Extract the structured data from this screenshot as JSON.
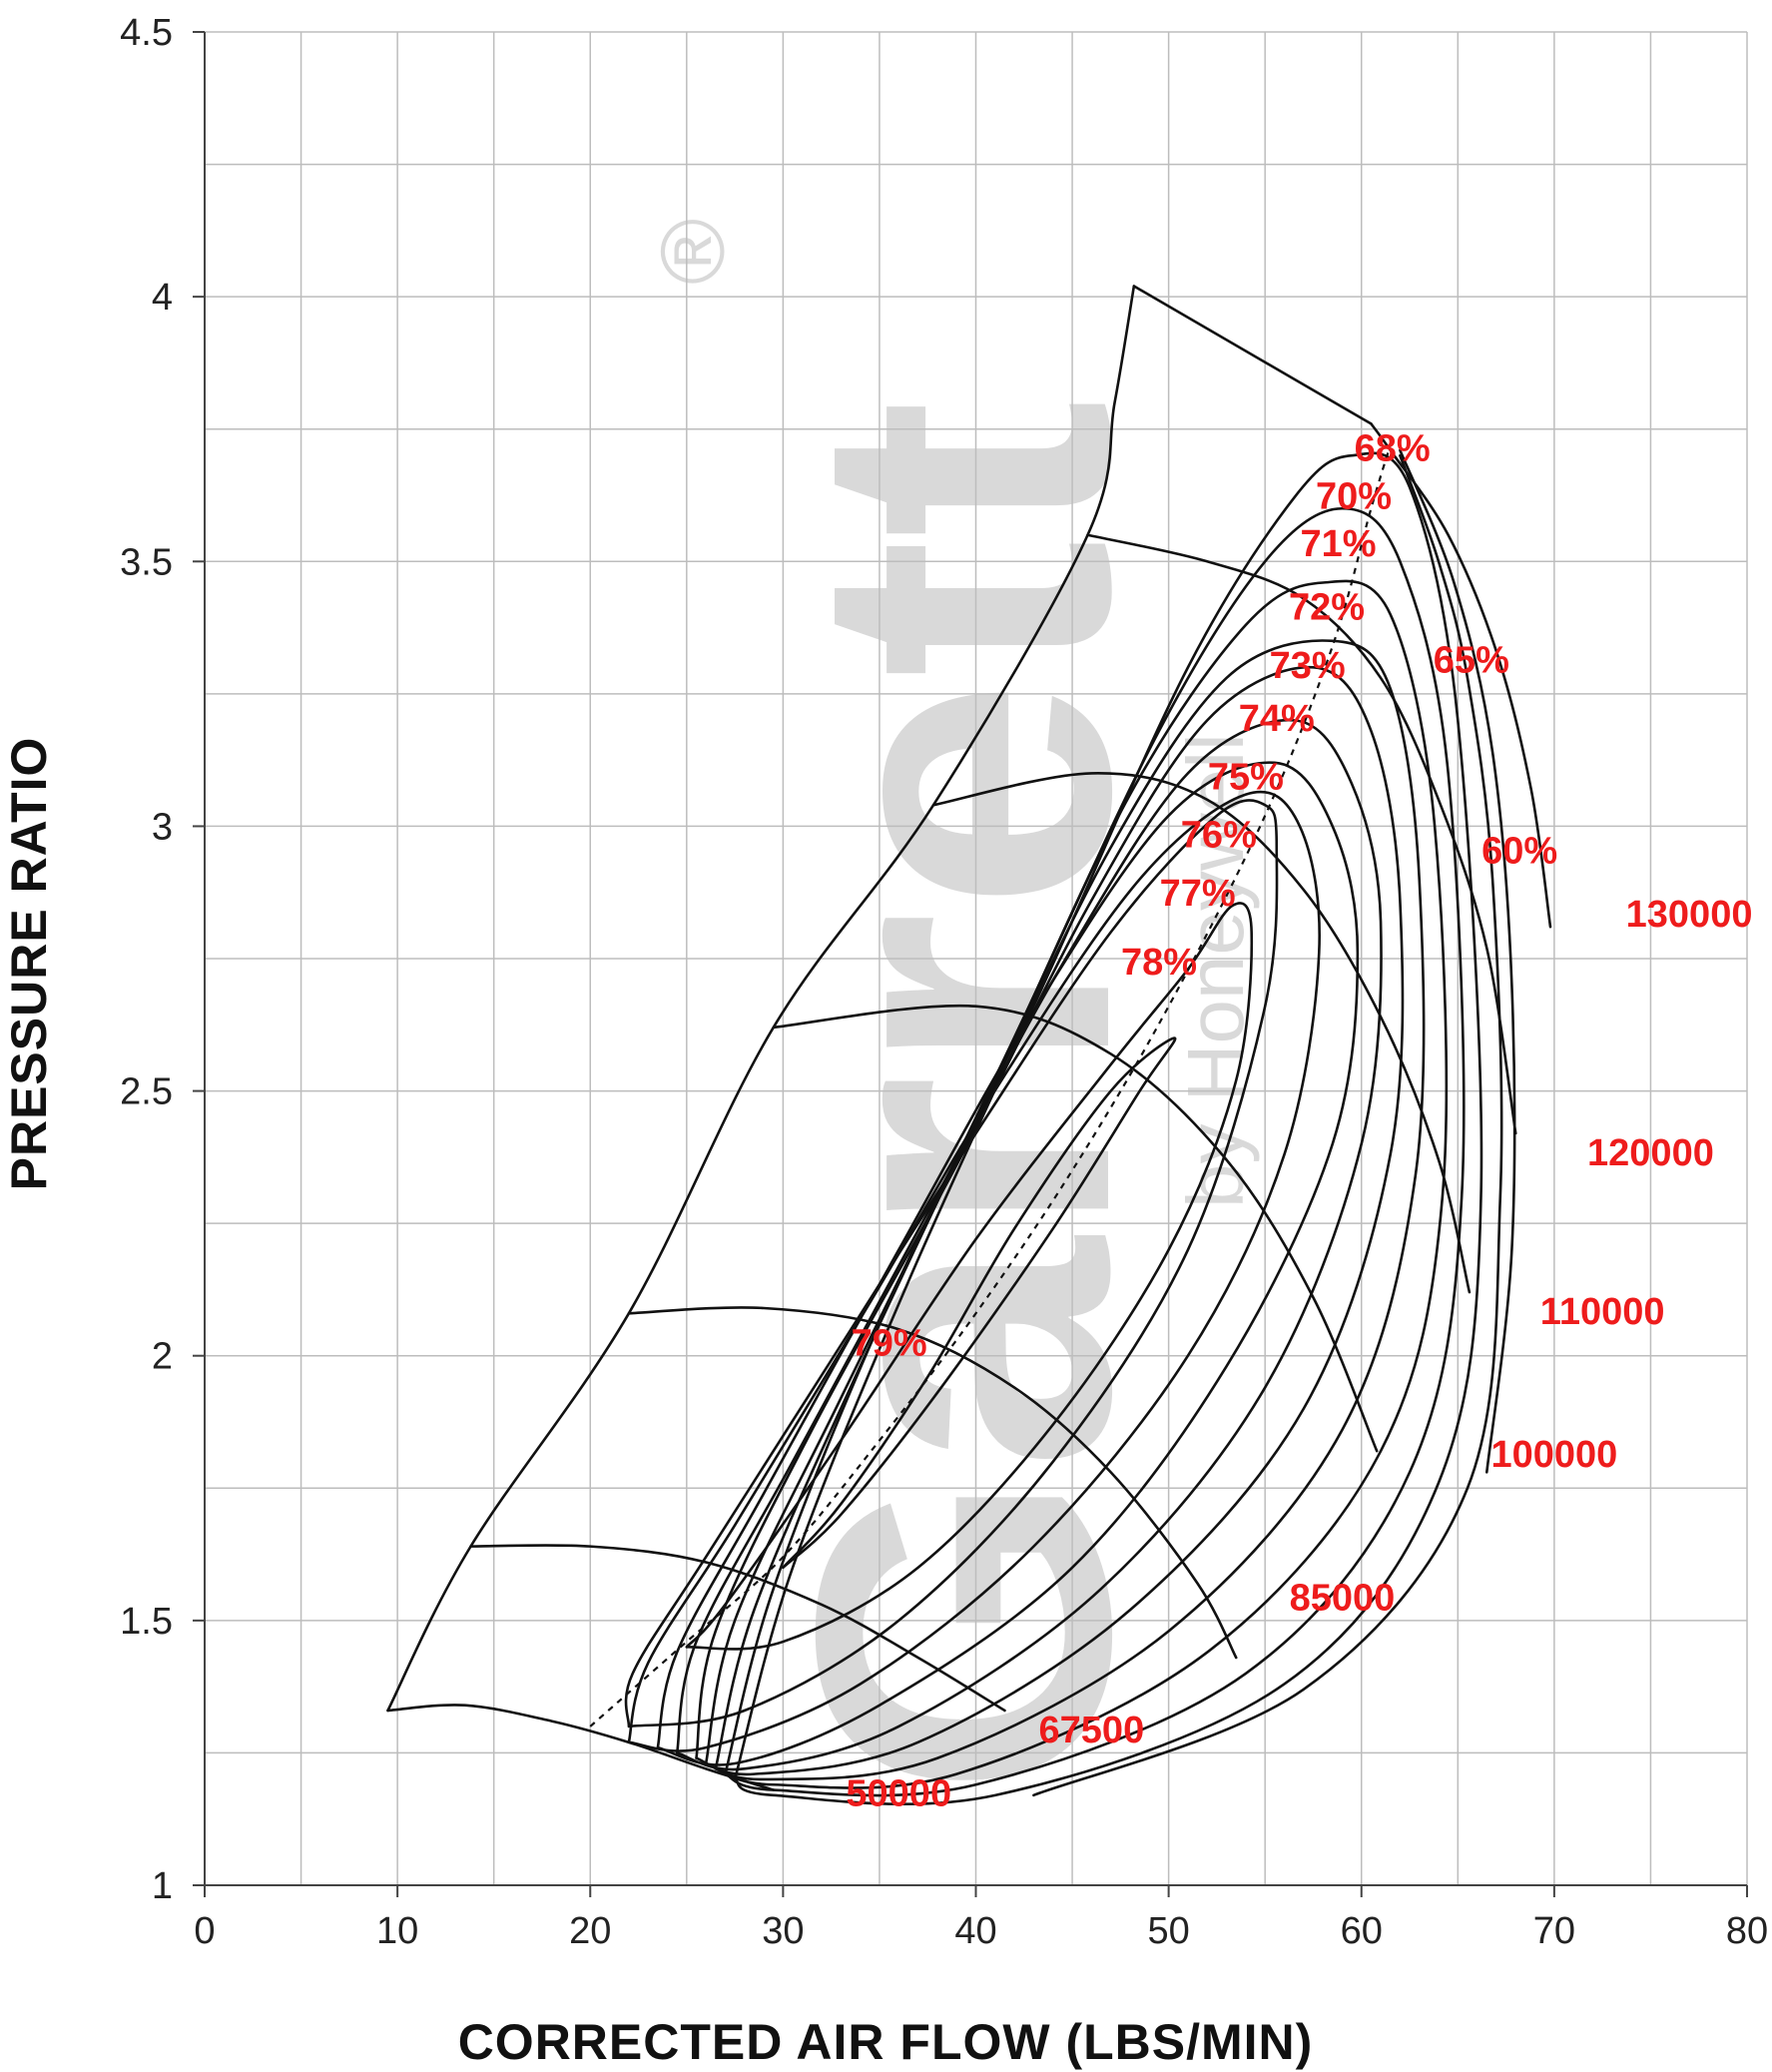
{
  "chart_data": {
    "type": "line",
    "title": "",
    "xlabel": "CORRECTED AIR FLOW (LBS/MIN)",
    "ylabel": "PRESSURE RATIO",
    "xlim": [
      0,
      80
    ],
    "ylim": [
      1,
      4.5
    ],
    "x_ticks": [
      "0",
      "10",
      "20",
      "30",
      "40",
      "50",
      "60",
      "70",
      "80"
    ],
    "y_ticks": [
      "1",
      "1.5",
      "2",
      "2.5",
      "3",
      "3.5",
      "4",
      "4.5"
    ],
    "grid": true,
    "watermark": {
      "text": "Garrett",
      "sub": "by Honeywell",
      "mark": "®"
    },
    "surge_line": [
      [
        9.5,
        1.33
      ],
      [
        13.8,
        1.64
      ],
      [
        22.0,
        2.08
      ],
      [
        29.5,
        2.62
      ],
      [
        37.8,
        3.04
      ],
      [
        45.8,
        3.55
      ],
      [
        47.2,
        3.8
      ],
      [
        48.2,
        4.02
      ]
    ],
    "choke_line": [
      [
        48.2,
        4.02
      ],
      [
        60.5,
        3.76
      ]
    ],
    "speed_lines": [
      {
        "rpm": "50000",
        "label": "50000",
        "points": [
          [
            9.5,
            1.33
          ],
          [
            13.5,
            1.34
          ],
          [
            18.0,
            1.31
          ],
          [
            22.0,
            1.27
          ],
          [
            26.0,
            1.22
          ],
          [
            29.5,
            1.18
          ]
        ]
      },
      {
        "rpm": "67500",
        "label": "67500",
        "points": [
          [
            13.8,
            1.64
          ],
          [
            20.0,
            1.64
          ],
          [
            26.0,
            1.61
          ],
          [
            32.0,
            1.53
          ],
          [
            37.0,
            1.43
          ],
          [
            41.5,
            1.33
          ]
        ]
      },
      {
        "rpm": "85000",
        "label": "85000",
        "points": [
          [
            22.0,
            2.08
          ],
          [
            29.0,
            2.09
          ],
          [
            36.0,
            2.05
          ],
          [
            42.0,
            1.94
          ],
          [
            47.0,
            1.78
          ],
          [
            51.5,
            1.57
          ],
          [
            53.5,
            1.43
          ]
        ]
      },
      {
        "rpm": "100000",
        "label": "100000",
        "points": [
          [
            29.5,
            2.62
          ],
          [
            40.0,
            2.66
          ],
          [
            47.0,
            2.57
          ],
          [
            53.0,
            2.37
          ],
          [
            57.5,
            2.11
          ],
          [
            60.8,
            1.82
          ]
        ]
      },
      {
        "rpm": "110000",
        "label": "110000",
        "points": [
          [
            37.8,
            3.04
          ],
          [
            46.0,
            3.1
          ],
          [
            52.0,
            3.05
          ],
          [
            57.0,
            2.88
          ],
          [
            61.0,
            2.64
          ],
          [
            64.0,
            2.37
          ],
          [
            65.6,
            2.12
          ]
        ]
      },
      {
        "rpm": "120000",
        "label": "120000",
        "points": [
          [
            45.8,
            3.55
          ],
          [
            52.0,
            3.5
          ],
          [
            57.0,
            3.43
          ],
          [
            61.0,
            3.28
          ],
          [
            64.0,
            3.05
          ],
          [
            66.5,
            2.77
          ],
          [
            68.0,
            2.42
          ]
        ]
      },
      {
        "rpm": "130000",
        "label": "130000",
        "points": [
          [
            60.5,
            3.76
          ],
          [
            61.5,
            3.71
          ],
          [
            64.5,
            3.55
          ],
          [
            67.0,
            3.33
          ],
          [
            68.8,
            3.07
          ],
          [
            69.8,
            2.81
          ]
        ]
      }
    ],
    "efficiency_islands": [
      {
        "label": "79%",
        "value": 79,
        "cx": 38.5,
        "cy": 1.86,
        "points": [
          [
            30.0,
            1.6
          ],
          [
            33.0,
            1.72
          ],
          [
            37.5,
            1.96
          ],
          [
            42.0,
            2.24
          ],
          [
            47.0,
            2.5
          ],
          [
            50.3,
            2.6
          ],
          [
            48.5,
            2.5
          ],
          [
            44.0,
            2.24
          ],
          [
            38.0,
            1.93
          ],
          [
            33.0,
            1.7
          ],
          [
            30.0,
            1.6
          ]
        ]
      },
      {
        "label": "78%",
        "value": 78,
        "cx": 40.5,
        "cy": 2.1,
        "points": [
          [
            25.0,
            1.45
          ],
          [
            27.0,
            1.53
          ],
          [
            33.0,
            1.84
          ],
          [
            40.0,
            2.22
          ],
          [
            47.0,
            2.55
          ],
          [
            51.0,
            2.73
          ],
          [
            53.3,
            2.85
          ],
          [
            54.3,
            2.8
          ],
          [
            53.5,
            2.52
          ],
          [
            50.0,
            2.2
          ],
          [
            44.0,
            1.87
          ],
          [
            37.0,
            1.6
          ],
          [
            30.0,
            1.46
          ],
          [
            25.0,
            1.45
          ]
        ]
      },
      {
        "label": "77%",
        "value": 77,
        "cx": 42.0,
        "cy": 2.22,
        "points": [
          [
            22.0,
            1.3
          ],
          [
            22.2,
            1.4
          ],
          [
            26.0,
            1.62
          ],
          [
            33.0,
            2.02
          ],
          [
            40.0,
            2.42
          ],
          [
            47.0,
            2.8
          ],
          [
            52.5,
            3.02
          ],
          [
            55.0,
            3.04
          ],
          [
            55.6,
            2.96
          ],
          [
            55.0,
            2.66
          ],
          [
            51.0,
            2.2
          ],
          [
            44.0,
            1.8
          ],
          [
            36.0,
            1.5
          ],
          [
            28.0,
            1.33
          ],
          [
            22.0,
            1.3
          ]
        ]
      },
      {
        "label": "76%",
        "value": 76,
        "cx": 43.0,
        "cy": 2.3,
        "points": [
          [
            22.0,
            1.27
          ],
          [
            23.0,
            1.42
          ],
          [
            27.5,
            1.68
          ],
          [
            34.5,
            2.1
          ],
          [
            41.5,
            2.53
          ],
          [
            48.5,
            2.9
          ],
          [
            54.0,
            3.06
          ],
          [
            56.8,
            3.0
          ],
          [
            57.8,
            2.76
          ],
          [
            56.0,
            2.38
          ],
          [
            51.0,
            2.0
          ],
          [
            43.0,
            1.64
          ],
          [
            34.0,
            1.38
          ],
          [
            26.0,
            1.26
          ],
          [
            22.0,
            1.27
          ]
        ]
      },
      {
        "label": "75%",
        "value": 75,
        "cx": 44.0,
        "cy": 2.4,
        "points": [
          [
            23.5,
            1.26
          ],
          [
            24.5,
            1.44
          ],
          [
            29.0,
            1.74
          ],
          [
            36.0,
            2.2
          ],
          [
            43.0,
            2.65
          ],
          [
            50.0,
            3.02
          ],
          [
            55.5,
            3.12
          ],
          [
            58.5,
            3.0
          ],
          [
            59.8,
            2.76
          ],
          [
            58.5,
            2.4
          ],
          [
            53.0,
            1.98
          ],
          [
            45.0,
            1.6
          ],
          [
            35.0,
            1.34
          ],
          [
            27.5,
            1.23
          ],
          [
            23.5,
            1.26
          ]
        ]
      },
      {
        "label": "74%",
        "value": 74,
        "cx": 45.0,
        "cy": 2.5,
        "points": [
          [
            24.5,
            1.25
          ],
          [
            25.5,
            1.46
          ],
          [
            30.5,
            1.8
          ],
          [
            37.5,
            2.27
          ],
          [
            44.5,
            2.74
          ],
          [
            51.0,
            3.1
          ],
          [
            56.5,
            3.2
          ],
          [
            59.5,
            3.08
          ],
          [
            61.0,
            2.82
          ],
          [
            60.0,
            2.4
          ],
          [
            55.0,
            1.94
          ],
          [
            46.5,
            1.56
          ],
          [
            36.0,
            1.3
          ],
          [
            28.0,
            1.22
          ],
          [
            24.5,
            1.25
          ]
        ]
      },
      {
        "label": "73%",
        "value": 73,
        "cx": 46.0,
        "cy": 2.58,
        "points": [
          [
            25.5,
            1.24
          ],
          [
            26.5,
            1.48
          ],
          [
            31.5,
            1.86
          ],
          [
            39.0,
            2.36
          ],
          [
            46.0,
            2.86
          ],
          [
            52.0,
            3.2
          ],
          [
            57.5,
            3.3
          ],
          [
            60.5,
            3.18
          ],
          [
            62.0,
            2.86
          ],
          [
            61.5,
            2.38
          ],
          [
            57.0,
            1.9
          ],
          [
            48.0,
            1.52
          ],
          [
            37.0,
            1.27
          ],
          [
            28.5,
            1.21
          ],
          [
            25.5,
            1.24
          ]
        ]
      },
      {
        "label": "72%",
        "value": 72,
        "cx": 47.0,
        "cy": 2.66,
        "points": [
          [
            26.0,
            1.23
          ],
          [
            27.5,
            1.5
          ],
          [
            33.0,
            1.92
          ],
          [
            40.0,
            2.44
          ],
          [
            47.0,
            2.96
          ],
          [
            53.0,
            3.28
          ],
          [
            58.5,
            3.35
          ],
          [
            61.5,
            3.26
          ],
          [
            63.0,
            2.9
          ],
          [
            62.8,
            2.34
          ],
          [
            59.0,
            1.86
          ],
          [
            50.0,
            1.48
          ],
          [
            38.0,
            1.24
          ],
          [
            29.0,
            1.2
          ],
          [
            26.0,
            1.23
          ]
        ]
      },
      {
        "label": "71%",
        "value": 71,
        "cx": 48.0,
        "cy": 2.75,
        "points": [
          [
            26.5,
            1.22
          ],
          [
            28.5,
            1.52
          ],
          [
            34.0,
            1.98
          ],
          [
            41.0,
            2.52
          ],
          [
            48.0,
            3.06
          ],
          [
            54.0,
            3.38
          ],
          [
            58.0,
            3.46
          ],
          [
            61.5,
            3.4
          ],
          [
            63.8,
            3.0
          ],
          [
            64.2,
            2.3
          ],
          [
            61.0,
            1.82
          ],
          [
            52.0,
            1.44
          ],
          [
            39.0,
            1.21
          ],
          [
            29.5,
            1.19
          ],
          [
            26.5,
            1.22
          ]
        ]
      },
      {
        "label": "70%",
        "value": 70,
        "cx": 48.5,
        "cy": 2.85,
        "points": [
          [
            27.0,
            1.21
          ],
          [
            29.5,
            1.56
          ],
          [
            35.0,
            2.06
          ],
          [
            42.5,
            2.64
          ],
          [
            49.5,
            3.18
          ],
          [
            55.0,
            3.5
          ],
          [
            59.0,
            3.6
          ],
          [
            62.0,
            3.5
          ],
          [
            64.5,
            3.1
          ],
          [
            65.2,
            2.3
          ],
          [
            62.5,
            1.78
          ],
          [
            54.0,
            1.4
          ],
          [
            40.0,
            1.19
          ],
          [
            29.5,
            1.18
          ],
          [
            27.0,
            1.21
          ]
        ]
      },
      {
        "label": "68%",
        "value": 68,
        "cx": 49.0,
        "cy": 2.95,
        "points": [
          [
            27.5,
            1.2
          ],
          [
            30.5,
            1.6
          ],
          [
            36.5,
            2.14
          ],
          [
            44.0,
            2.74
          ],
          [
            51.0,
            3.3
          ],
          [
            56.5,
            3.62
          ],
          [
            59.5,
            3.7
          ],
          [
            62.5,
            3.64
          ],
          [
            65.0,
            3.2
          ],
          [
            66.2,
            2.3
          ],
          [
            64.0,
            1.76
          ],
          [
            56.0,
            1.38
          ],
          [
            41.0,
            1.17
          ],
          [
            29.5,
            1.17
          ],
          [
            27.5,
            1.2
          ]
        ]
      },
      {
        "label": "65%",
        "value": 65,
        "cx": 50.0,
        "cy": 3.0,
        "points": [
          [
            62.0,
            3.7
          ],
          [
            64.0,
            3.5
          ],
          [
            65.5,
            3.28
          ],
          [
            66.8,
            2.9
          ],
          [
            67.2,
            2.3
          ],
          [
            65.5,
            1.75
          ],
          [
            57.0,
            1.37
          ],
          [
            43.0,
            1.17
          ]
        ]
      },
      {
        "label": "60%",
        "value": 60,
        "cx": 50.0,
        "cy": 3.0,
        "points": [
          [
            62.0,
            3.71
          ],
          [
            64.8,
            3.46
          ],
          [
            66.8,
            3.14
          ],
          [
            67.8,
            2.7
          ],
          [
            67.8,
            2.2
          ],
          [
            66.5,
            1.78
          ]
        ]
      }
    ],
    "peak_efficiency_line": {
      "label": "",
      "points": [
        [
          20.0,
          1.3
        ],
        [
          25.0,
          1.46
        ],
        [
          30.0,
          1.62
        ],
        [
          35.0,
          1.84
        ],
        [
          40.0,
          2.08
        ],
        [
          45.0,
          2.35
        ],
        [
          50.0,
          2.66
        ],
        [
          55.0,
          3.02
        ],
        [
          58.5,
          3.34
        ],
        [
          60.5,
          3.6
        ],
        [
          61.5,
          3.72
        ]
      ]
    },
    "annotations": [
      "68%",
      "70%",
      "71%",
      "72%",
      "73%",
      "74%",
      "75%",
      "76%",
      "77%",
      "78%",
      "79%",
      "65%",
      "60%",
      "50000",
      "67500",
      "85000",
      "100000",
      "110000",
      "120000",
      "130000"
    ]
  }
}
